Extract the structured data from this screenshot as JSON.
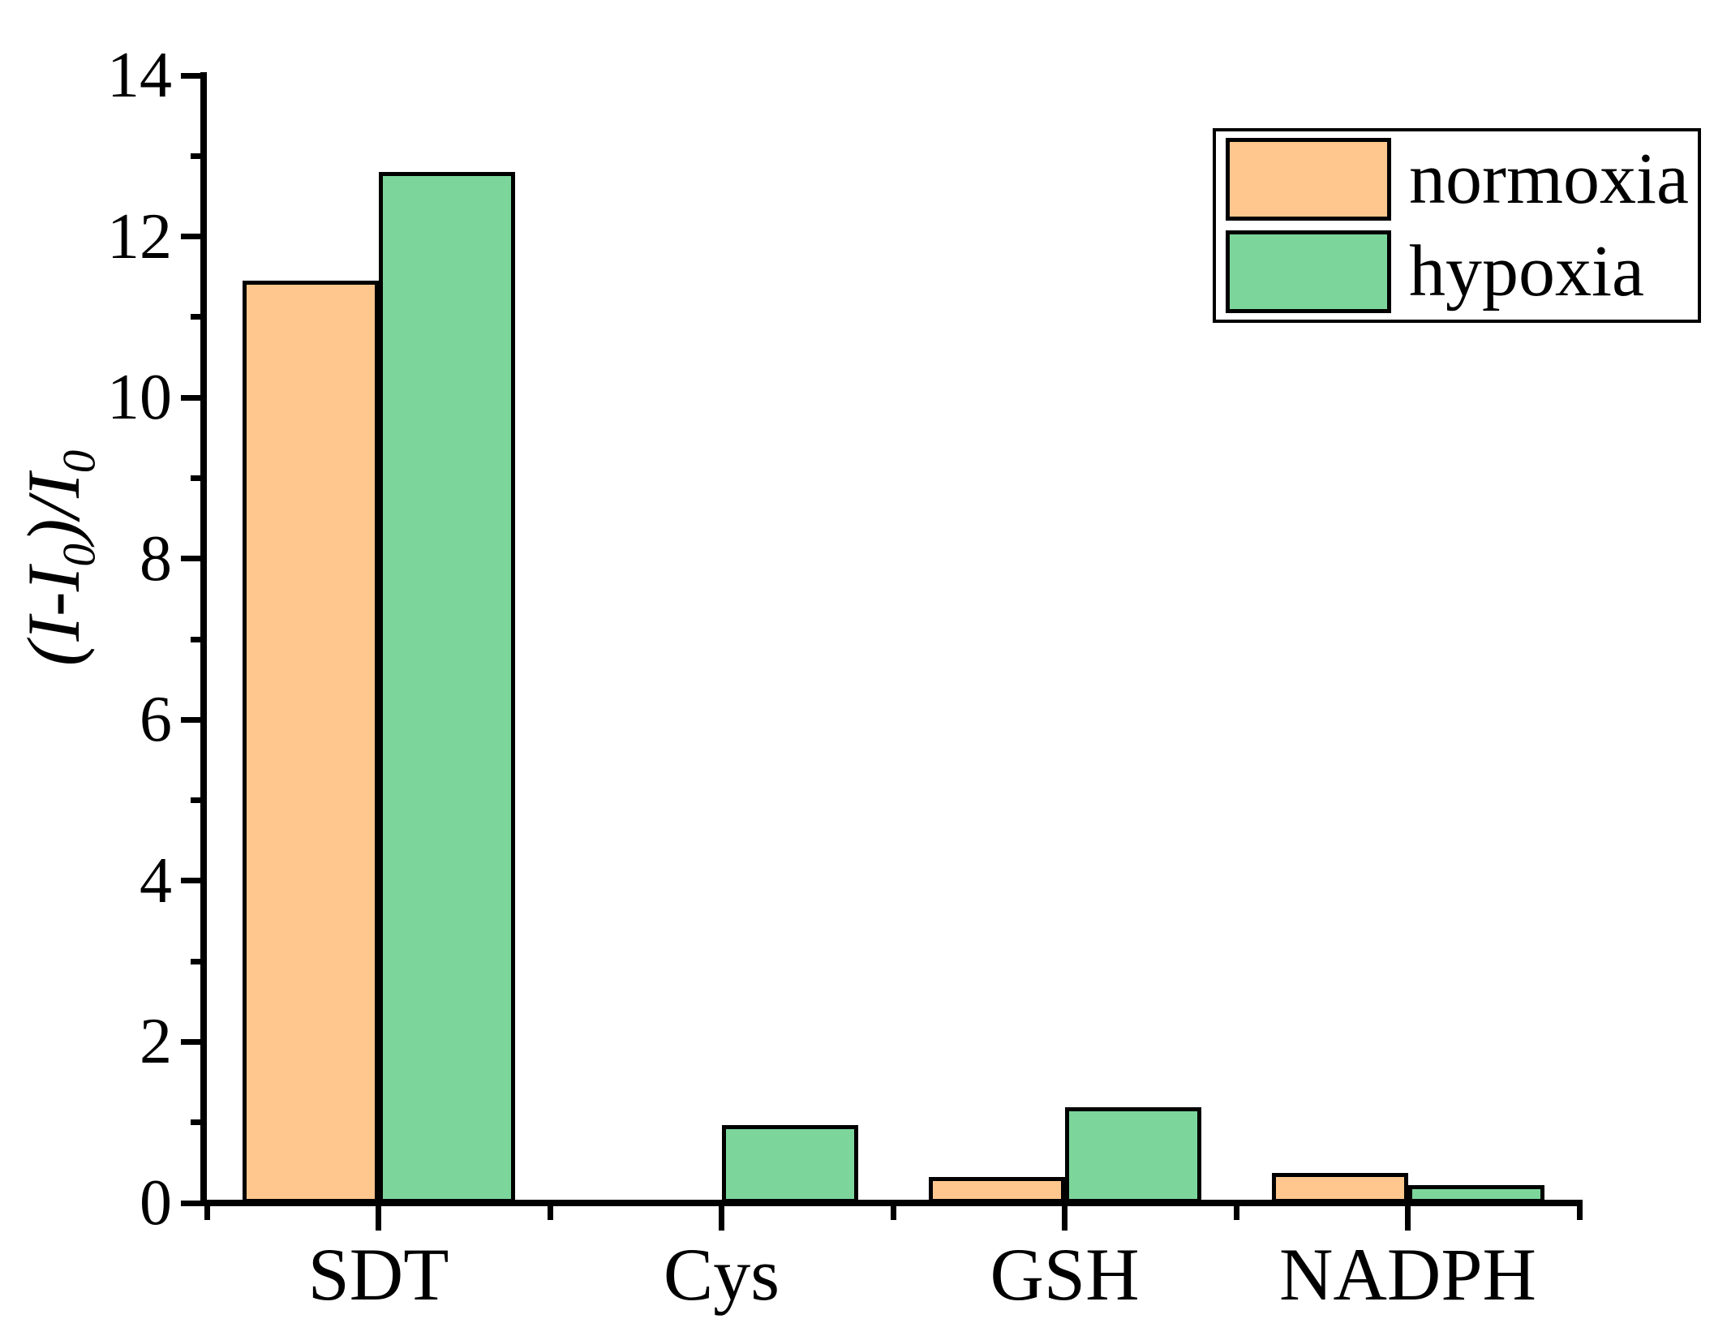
{
  "chart_data": {
    "type": "bar",
    "title": "",
    "categories": [
      "SDT",
      "Cys",
      "GSH",
      "NADPH"
    ],
    "series": [
      {
        "name": "normoxia",
        "color": "#FFC78E",
        "values": [
          11.45,
          0,
          0.32,
          0.37
        ]
      },
      {
        "name": "hypoxia",
        "color": "#7CD69C",
        "values": [
          12.8,
          0.97,
          1.19,
          0.22
        ]
      }
    ],
    "xlabel": "",
    "ylabel": "(I-I₀)/I₀",
    "ylabel_parts": [
      {
        "text": "(I-I"
      },
      {
        "text": "0",
        "subscript": true
      },
      {
        "text": ")/I"
      },
      {
        "text": "0",
        "subscript": true
      }
    ],
    "ylim": [
      0,
      14
    ],
    "yticks_major": [
      0,
      2,
      4,
      6,
      8,
      10,
      12,
      14
    ],
    "yticks_minor": [
      1,
      3,
      5,
      7,
      9,
      11,
      13
    ],
    "grid": false,
    "legend_position": "top-right",
    "axis_color": "#000000",
    "bar_border_color": "#000000",
    "background_color": "#FFFFFF"
  }
}
